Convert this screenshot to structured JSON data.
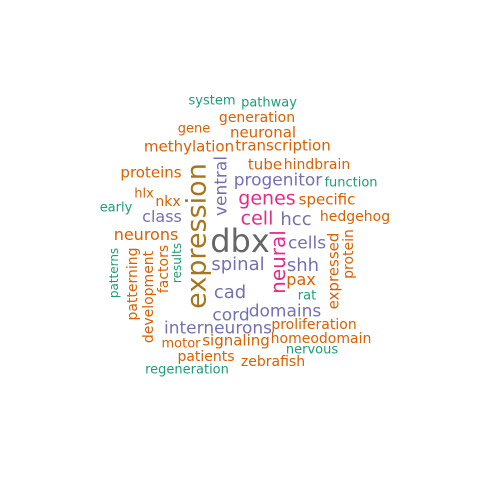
{
  "wordcloud": {
    "colors": {
      "green": "#1b9e77",
      "orange": "#d95f02",
      "purple": "#7570b3",
      "pink": "#e7298a",
      "olive": "#a6761d",
      "gray": "#666666"
    },
    "words": [
      {
        "text": "system",
        "color": "green"
      },
      {
        "text": "pathway",
        "color": "green"
      },
      {
        "text": "generation",
        "color": "orange"
      },
      {
        "text": "gene",
        "color": "orange"
      },
      {
        "text": "neuronal",
        "color": "orange"
      },
      {
        "text": "methylation",
        "color": "orange"
      },
      {
        "text": "transcription",
        "color": "orange"
      },
      {
        "text": "tube",
        "color": "orange"
      },
      {
        "text": "hindbrain",
        "color": "orange"
      },
      {
        "text": "proteins",
        "color": "orange"
      },
      {
        "text": "expression",
        "color": "olive"
      },
      {
        "text": "ventral",
        "color": "purple"
      },
      {
        "text": "progenitor",
        "color": "purple"
      },
      {
        "text": "function",
        "color": "green"
      },
      {
        "text": "hlx",
        "color": "orange"
      },
      {
        "text": "nkx",
        "color": "orange"
      },
      {
        "text": "genes",
        "color": "pink"
      },
      {
        "text": "specific",
        "color": "orange"
      },
      {
        "text": "early",
        "color": "green"
      },
      {
        "text": "class",
        "color": "purple"
      },
      {
        "text": "cell",
        "color": "pink"
      },
      {
        "text": "hcc",
        "color": "purple"
      },
      {
        "text": "hedgehog",
        "color": "orange"
      },
      {
        "text": "neurons",
        "color": "orange"
      },
      {
        "text": "dbx",
        "color": "gray"
      },
      {
        "text": "neural",
        "color": "pink"
      },
      {
        "text": "cells",
        "color": "purple"
      },
      {
        "text": "protein",
        "color": "orange"
      },
      {
        "text": "patterns",
        "color": "green"
      },
      {
        "text": "patterning",
        "color": "orange"
      },
      {
        "text": "development",
        "color": "orange"
      },
      {
        "text": "factors",
        "color": "orange"
      },
      {
        "text": "results",
        "color": "green"
      },
      {
        "text": "spinal",
        "color": "purple"
      },
      {
        "text": "shh",
        "color": "purple"
      },
      {
        "text": "expressed",
        "color": "orange"
      },
      {
        "text": "pax",
        "color": "orange"
      },
      {
        "text": "cad",
        "color": "purple"
      },
      {
        "text": "rat",
        "color": "green"
      },
      {
        "text": "cord",
        "color": "purple"
      },
      {
        "text": "domains",
        "color": "purple"
      },
      {
        "text": "interneurons",
        "color": "purple"
      },
      {
        "text": "proliferation",
        "color": "orange"
      },
      {
        "text": "motor",
        "color": "orange"
      },
      {
        "text": "signaling",
        "color": "orange"
      },
      {
        "text": "homeodomain",
        "color": "orange"
      },
      {
        "text": "nervous",
        "color": "green"
      },
      {
        "text": "patients",
        "color": "orange"
      },
      {
        "text": "zebrafish",
        "color": "orange"
      },
      {
        "text": "regeneration",
        "color": "green"
      }
    ]
  }
}
